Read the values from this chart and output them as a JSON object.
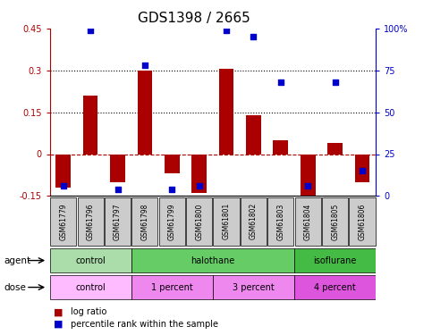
{
  "title": "GDS1398 / 2665",
  "samples": [
    "GSM61779",
    "GSM61796",
    "GSM61797",
    "GSM61798",
    "GSM61799",
    "GSM61800",
    "GSM61801",
    "GSM61802",
    "GSM61803",
    "GSM61804",
    "GSM61805",
    "GSM61806"
  ],
  "log_ratios": [
    -0.12,
    0.21,
    -0.1,
    0.3,
    -0.07,
    -0.14,
    0.305,
    0.14,
    0.05,
    -0.19,
    0.04,
    -0.1
  ],
  "percentile_ranks": [
    6,
    99,
    4,
    78,
    4,
    6,
    99,
    95,
    68,
    6,
    68,
    15
  ],
  "ylim_left": [
    -0.15,
    0.45
  ],
  "ylim_right": [
    0,
    100
  ],
  "left_ticks": [
    -0.15,
    0,
    0.15,
    0.3,
    0.45
  ],
  "right_ticks": [
    0,
    25,
    50,
    75,
    100
  ],
  "right_tick_labels": [
    "0",
    "25",
    "50",
    "75",
    "100%"
  ],
  "dotted_lines": [
    0.15,
    0.3
  ],
  "agent_groups": [
    {
      "label": "control",
      "start": 0,
      "end": 3,
      "color": "#AADDAA"
    },
    {
      "label": "halothane",
      "start": 3,
      "end": 9,
      "color": "#66CC66"
    },
    {
      "label": "isoflurane",
      "start": 9,
      "end": 12,
      "color": "#44BB44"
    }
  ],
  "dose_groups": [
    {
      "label": "control",
      "start": 0,
      "end": 3,
      "color": "#FFBBFF"
    },
    {
      "label": "1 percent",
      "start": 3,
      "end": 6,
      "color": "#EE88EE"
    },
    {
      "label": "3 percent",
      "start": 6,
      "end": 9,
      "color": "#EE88EE"
    },
    {
      "label": "4 percent",
      "start": 9,
      "end": 12,
      "color": "#DD55DD"
    }
  ],
  "bar_color": "#AA0000",
  "dot_color": "#0000CC",
  "bar_width": 0.55,
  "title_fontsize": 11,
  "left_axis_color": "#AA0000",
  "right_axis_color": "#0000CC",
  "legend_red_label": "log ratio",
  "legend_blue_label": "percentile rank within the sample",
  "sample_box_color": "#CCCCCC",
  "grid_color": "#CCCCCC"
}
